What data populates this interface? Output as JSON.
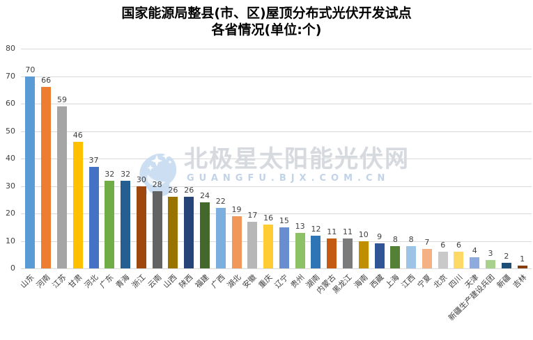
{
  "title": {
    "line1": "国家能源局整县(市、区)屋顶分布式光伏开发试点",
    "line2": "各省情况(单位:个)"
  },
  "watermark": {
    "brand": "北极星太阳能光伏网",
    "url": "GUANGFU.BJX.COM.CN",
    "logo_name": "polaris-bear-logo",
    "logo_color": "#C7DCF1",
    "brand_color": "#D6DADF",
    "url_color": "#C2D3E8"
  },
  "chart_data": {
    "type": "bar",
    "title": "国家能源局整县(市、区)屋顶分布式光伏开发试点 各省情况(单位:个)",
    "categories": [
      "山东",
      "河南",
      "江苏",
      "甘肃",
      "河北",
      "广东",
      "青海",
      "浙江",
      "云南",
      "山西",
      "陕西",
      "福建",
      "广西",
      "湖北",
      "安徽",
      "重庆",
      "辽宁",
      "贵州",
      "湖南",
      "内蒙古",
      "黑龙江",
      "海南",
      "西藏",
      "上海",
      "江西",
      "宁夏",
      "北京",
      "四川",
      "天津",
      "新疆生产建设兵团",
      "新疆",
      "吉林"
    ],
    "values": [
      70,
      66,
      59,
      46,
      37,
      32,
      32,
      30,
      28,
      26,
      26,
      24,
      22,
      19,
      17,
      16,
      15,
      13,
      12,
      11,
      11,
      10,
      9,
      8,
      8,
      7,
      6,
      6,
      4,
      3,
      2,
      1
    ],
    "bar_colors": [
      "#5B9BD5",
      "#ED7D31",
      "#A5A5A5",
      "#FFC000",
      "#4472C4",
      "#70AD47",
      "#255E91",
      "#9E480E",
      "#636363",
      "#997300",
      "#264478",
      "#43682B",
      "#7CAFDD",
      "#F1975A",
      "#B7B7B7",
      "#FFCD33",
      "#698ED0",
      "#8CC168",
      "#2E75B6",
      "#C55A11",
      "#7B7B7B",
      "#BF8F00",
      "#2F5597",
      "#538135",
      "#9DC3E6",
      "#F4B183",
      "#C9C9C9",
      "#FFD966",
      "#8FAADC",
      "#A9D18E",
      "#1F4E79",
      "#843C0C"
    ],
    "ylim": [
      0,
      80
    ],
    "yticks": [
      0,
      10,
      20,
      30,
      40,
      50,
      60,
      70,
      80
    ],
    "grid": true,
    "data_labels": true,
    "legend": "none",
    "x_label_rotation": 45,
    "gridline_color": "#D9D9D9",
    "label_color": "#404040"
  }
}
